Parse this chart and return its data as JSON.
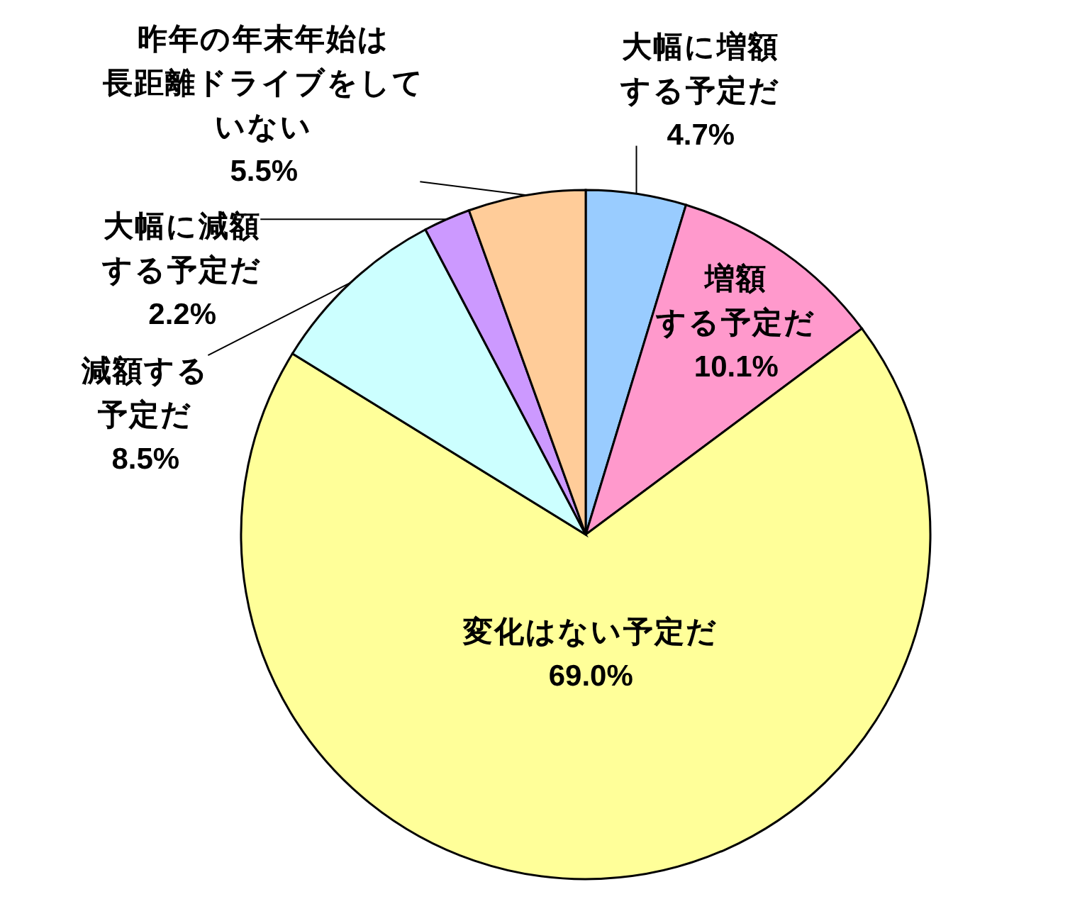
{
  "chart_data": {
    "type": "pie",
    "categories": [
      "大幅に増額する予定だ",
      "増額する予定だ",
      "変化はない予定だ",
      "減額する予定だ",
      "大幅に減額する予定だ",
      "昨年の年末年始は長距離ドライブをしていない"
    ],
    "values": [
      4.7,
      10.1,
      69.0,
      8.5,
      2.2,
      5.5
    ],
    "colors": [
      "#99ccff",
      "#ff99cc",
      "#ffff99",
      "#ccffff",
      "#cc99ff",
      "#ffcc99"
    ],
    "value_labels": [
      "4.7%",
      "10.1%",
      "69.0%",
      "8.5%",
      "2.2%",
      "5.5%"
    ]
  }
}
